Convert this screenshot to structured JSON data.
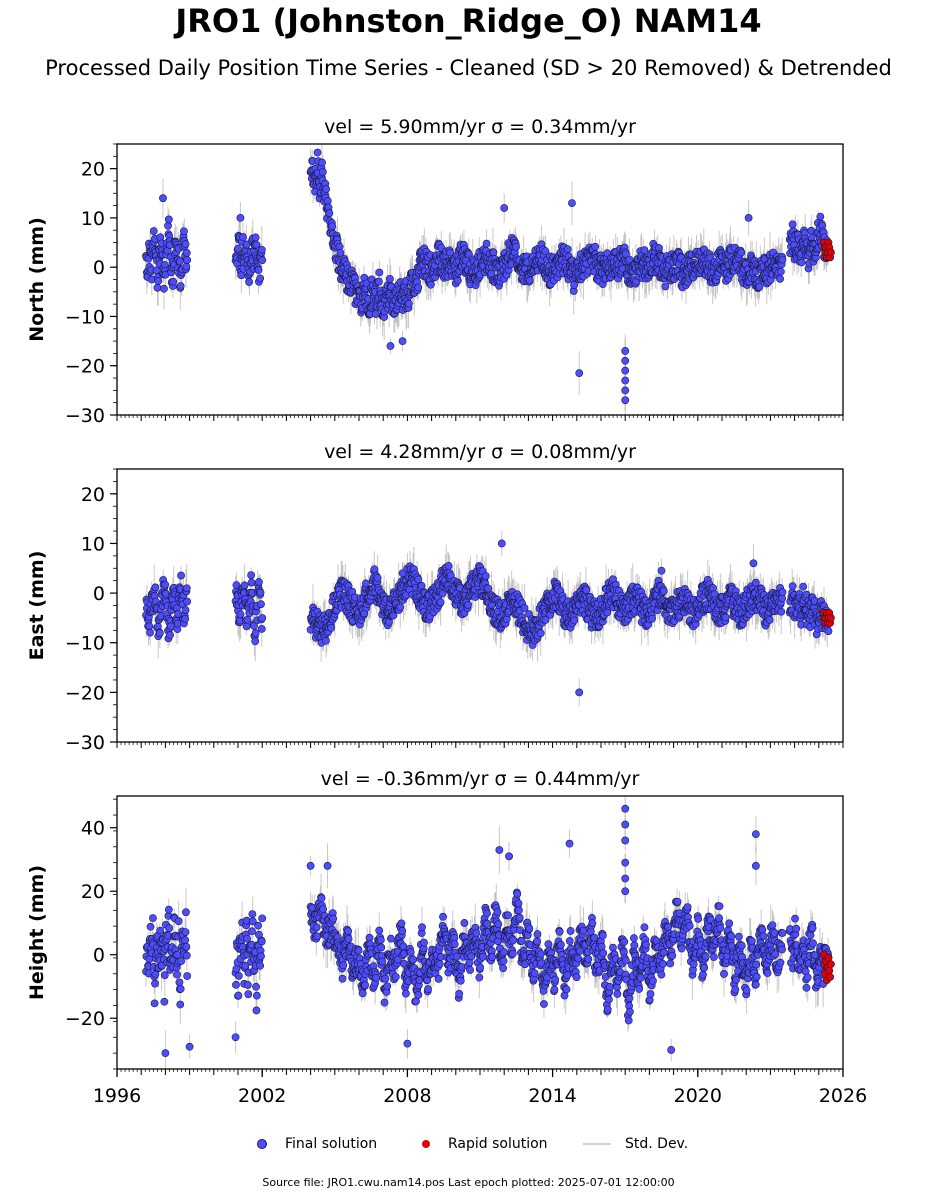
{
  "page": {
    "title": "JRO1 (Johnston_Ridge_O) NAM14",
    "subtitle": "Processed Daily Position Time Series - Cleaned (SD > 20 Removed) & Detrended",
    "source_note": "Source file: JRO1.cwu.nam14.pos  Last epoch plotted: 2025-07-01 12:00:00"
  },
  "legend": {
    "final_label": "Final solution",
    "rapid_label": "Rapid solution",
    "stddev_label": "Std. Dev."
  },
  "colors": {
    "final": "#4d4dff",
    "final_edge": "#1a1a3a",
    "rapid": "#e00000",
    "stddev": "#9a9a9a"
  },
  "chart_data": [
    {
      "type": "scatter",
      "title": "vel = 5.90mm/yr   σ = 0.34mm/yr",
      "ylabel": "North (mm)",
      "xlim": [
        1996,
        2026
      ],
      "ylim": [
        -30,
        25
      ],
      "yticks": [
        -30,
        -20,
        -10,
        0,
        10,
        20
      ],
      "xticks": [
        1996,
        2002,
        2008,
        2014,
        2020,
        2026
      ],
      "show_xticklabels": false,
      "segments": [
        {
          "start": 1997.2,
          "end": 1998.9,
          "values": [
            1,
            -1,
            3,
            2,
            0,
            4,
            6,
            2,
            -2,
            1,
            3,
            5,
            1,
            -3,
            2,
            4,
            7,
            3,
            0,
            -1,
            2,
            5,
            3,
            1,
            -2,
            0,
            4,
            6,
            2,
            1
          ]
        },
        {
          "start": 2000.9,
          "end": 2002.0,
          "values": [
            2,
            0,
            4,
            3,
            1,
            5,
            -1,
            2,
            3,
            0,
            -2,
            2,
            4,
            1,
            3,
            5,
            2,
            -1,
            1,
            3
          ]
        },
        {
          "start": 2004.0,
          "end": 2005.5,
          "values": [
            20,
            19,
            18,
            17,
            21,
            16,
            18,
            19,
            15,
            13,
            12,
            10,
            9,
            7,
            5,
            4,
            2,
            1,
            -1,
            0,
            -2,
            -3
          ]
        },
        {
          "start": 2005.5,
          "end": 2008.5,
          "values": [
            -2,
            -4,
            -3,
            -5,
            -6,
            -5,
            -7,
            -4,
            -6,
            -8,
            -5,
            -7,
            -6,
            -4,
            -8,
            -9,
            -6,
            -5,
            -7,
            -8,
            -6,
            -5,
            -7,
            -4,
            -6,
            -5,
            -3,
            -4,
            -2,
            -3
          ]
        },
        {
          "start": 2008.5,
          "end": 2023.5,
          "values": [
            0,
            1,
            -1,
            2,
            0,
            1,
            -1,
            3,
            0,
            -2,
            1,
            2,
            0,
            -1,
            1,
            3,
            2,
            -1,
            0,
            1,
            2,
            -1,
            0,
            2,
            1,
            -2,
            0,
            1,
            3,
            0,
            -1,
            1,
            0,
            2,
            -1,
            -2,
            1,
            0,
            2,
            1,
            -1,
            0,
            1,
            -2,
            0,
            1,
            2,
            0,
            -1,
            1,
            0,
            2,
            1,
            -1,
            0,
            -2,
            -1,
            0,
            1,
            -1
          ]
        },
        {
          "start": 2023.8,
          "end": 2025.4,
          "values": [
            5,
            6,
            4,
            5,
            3,
            6,
            4,
            2,
            5,
            3,
            6,
            8,
            5,
            4,
            3
          ]
        }
      ],
      "outliers": [
        {
          "x": 1997.9,
          "y": 14
        },
        {
          "x": 2001.1,
          "y": 10
        },
        {
          "x": 2007.3,
          "y": -16
        },
        {
          "x": 2007.8,
          "y": -15
        },
        {
          "x": 2012.0,
          "y": 12
        },
        {
          "x": 2014.8,
          "y": 13
        },
        {
          "x": 2015.1,
          "y": -21.5
        },
        {
          "x": 2017.0,
          "y": -17
        },
        {
          "x": 2017.0,
          "y": -19
        },
        {
          "x": 2017.0,
          "y": -21
        },
        {
          "x": 2017.0,
          "y": -23
        },
        {
          "x": 2017.0,
          "y": -25
        },
        {
          "x": 2017.0,
          "y": -27
        },
        {
          "x": 2022.1,
          "y": 10
        }
      ],
      "rapid": {
        "start": 2025.2,
        "end": 2025.5,
        "values": [
          5,
          4,
          3,
          4,
          2,
          3,
          5,
          4,
          2,
          3
        ]
      }
    },
    {
      "type": "scatter",
      "title": "vel = 4.28mm/yr   σ = 0.08mm/yr",
      "ylabel": "East (mm)",
      "xlim": [
        1996,
        2026
      ],
      "ylim": [
        -30,
        25
      ],
      "yticks": [
        -30,
        -20,
        -10,
        0,
        10,
        20
      ],
      "xticks": [
        1996,
        2002,
        2008,
        2014,
        2020,
        2026
      ],
      "show_xticklabels": false,
      "segments": [
        {
          "start": 1997.2,
          "end": 1998.9,
          "values": [
            -2,
            -4,
            -7,
            -5,
            -3,
            -1,
            1,
            -2,
            -5,
            -8,
            -6,
            -3,
            0,
            2,
            -1,
            -4,
            -7,
            -6,
            -2,
            1,
            -1,
            -4,
            -6,
            -3,
            0,
            2,
            -2,
            -5,
            -3,
            1
          ]
        },
        {
          "start": 2000.9,
          "end": 2002.0,
          "values": [
            -2,
            -1,
            -3,
            -5,
            -2,
            0,
            1,
            -3,
            -6,
            -4,
            -1,
            1,
            -2,
            -5,
            -7,
            -4,
            -1,
            0,
            -3,
            -5
          ]
        },
        {
          "start": 2004.0,
          "end": 2023.5,
          "values": [
            -5,
            -6,
            -8,
            -7,
            -4,
            -2,
            0,
            -1,
            -3,
            -5,
            -2,
            1,
            2,
            -1,
            -3,
            -4,
            -2,
            0,
            2,
            3,
            1,
            -1,
            -3,
            -2,
            0,
            2,
            3,
            1,
            -1,
            -2,
            0,
            2,
            3,
            1,
            -2,
            -4,
            -5,
            -3,
            -1,
            -3,
            -5,
            -7,
            -8,
            -6,
            -4,
            -2,
            0,
            -2,
            -4,
            -5,
            -3,
            -1,
            -2,
            -4,
            -5,
            -3,
            -1,
            0,
            -2,
            -4,
            -3,
            -1,
            -2,
            -4,
            -3,
            -1,
            0,
            -2,
            -4,
            -3,
            -1,
            -2,
            -4,
            -3,
            -1,
            0,
            -2,
            -4,
            -3,
            -1,
            -2,
            -4,
            -3,
            -1,
            0,
            -2,
            -4,
            -3,
            -1,
            -2
          ]
        },
        {
          "start": 2023.8,
          "end": 2025.4,
          "values": [
            -2,
            -1,
            -3,
            -2,
            -4,
            -1,
            -3,
            -5,
            -2,
            -4,
            -6,
            -3,
            -5,
            -4,
            -6
          ]
        }
      ],
      "outliers": [
        {
          "x": 2011.9,
          "y": 10
        },
        {
          "x": 2015.1,
          "y": -20
        },
        {
          "x": 2018.5,
          "y": 4.5
        },
        {
          "x": 2022.3,
          "y": 6
        },
        {
          "x": 2007.8,
          "y": 4
        }
      ],
      "rapid": {
        "start": 2025.2,
        "end": 2025.5,
        "values": [
          -4,
          -5,
          -6,
          -5,
          -4,
          -6,
          -5,
          -4,
          -6,
          -5
        ]
      }
    },
    {
      "type": "scatter",
      "title": "vel = -0.36mm/yr   σ = 0.44mm/yr",
      "ylabel": "Height (mm)",
      "xlim": [
        1996,
        2026
      ],
      "ylim": [
        -36,
        50
      ],
      "yticks": [
        -20,
        0,
        20,
        40
      ],
      "xticks": [
        1996,
        2002,
        2008,
        2014,
        2020,
        2026
      ],
      "xtick_labels": [
        "1996",
        "2002",
        "2008",
        "2014",
        "2020",
        "2026"
      ],
      "show_xticklabels": true,
      "segments": [
        {
          "start": 1997.2,
          "end": 1998.9,
          "values": [
            -5,
            5,
            -10,
            8,
            -3,
            12,
            -15,
            2,
            6,
            -8,
            10,
            -2,
            4,
            -12,
            8,
            0,
            15,
            -6,
            3,
            -9,
            11,
            1,
            -4,
            7,
            -14,
            5,
            9,
            -2,
            13,
            -7
          ]
        },
        {
          "start": 2000.9,
          "end": 2002.0,
          "values": [
            -8,
            2,
            -12,
            5,
            -3,
            10,
            -6,
            0,
            8,
            -10,
            4,
            -2,
            12,
            -5,
            3,
            -15,
            7,
            1,
            -4,
            9
          ]
        },
        {
          "start": 2004.0,
          "end": 2023.5,
          "values": [
            12,
            8,
            15,
            5,
            10,
            2,
            -3,
            5,
            -6,
            0,
            -10,
            3,
            -8,
            5,
            -12,
            2,
            -5,
            8,
            -10,
            0,
            -15,
            5,
            -8,
            2,
            -6,
            10,
            -3,
            4,
            -10,
            6,
            -2,
            8,
            -5,
            12,
            0,
            15,
            -4,
            10,
            2,
            18,
            -3,
            8,
            -6,
            5,
            -12,
            2,
            -8,
            6,
            -10,
            3,
            -5,
            8,
            -2,
            10,
            -6,
            4,
            -15,
            0,
            -10,
            5,
            -20,
            2,
            -8,
            6,
            -12,
            3,
            -6,
            10,
            0,
            15,
            5,
            12,
            -2,
            8,
            -5,
            10,
            2,
            14,
            -3,
            6,
            -8,
            4,
            -10,
            2,
            -6,
            8,
            -4,
            6,
            -2,
            4
          ]
        },
        {
          "start": 2023.8,
          "end": 2025.4,
          "values": [
            5,
            -2,
            8,
            0,
            -5,
            3,
            -8,
            2,
            6,
            -3,
            -10,
            4,
            -6,
            1,
            -4
          ]
        }
      ],
      "outliers": [
        {
          "x": 1998.0,
          "y": -31
        },
        {
          "x": 1999.0,
          "y": -29
        },
        {
          "x": 2000.9,
          "y": -26
        },
        {
          "x": 2004.0,
          "y": 28
        },
        {
          "x": 2004.7,
          "y": 28
        },
        {
          "x": 2011.8,
          "y": 33
        },
        {
          "x": 2012.2,
          "y": 31
        },
        {
          "x": 2014.7,
          "y": 35
        },
        {
          "x": 2017.0,
          "y": 46
        },
        {
          "x": 2017.0,
          "y": 41
        },
        {
          "x": 2017.0,
          "y": 36
        },
        {
          "x": 2017.0,
          "y": 29
        },
        {
          "x": 2017.0,
          "y": 24
        },
        {
          "x": 2017.0,
          "y": 20
        },
        {
          "x": 2022.4,
          "y": 38
        },
        {
          "x": 2022.4,
          "y": 28
        },
        {
          "x": 2018.9,
          "y": -30
        },
        {
          "x": 2008.0,
          "y": -28
        }
      ],
      "rapid": {
        "start": 2025.2,
        "end": 2025.5,
        "values": [
          0,
          -3,
          -6,
          -2,
          -8,
          -4,
          -1,
          -5,
          -7,
          -3
        ]
      }
    }
  ]
}
